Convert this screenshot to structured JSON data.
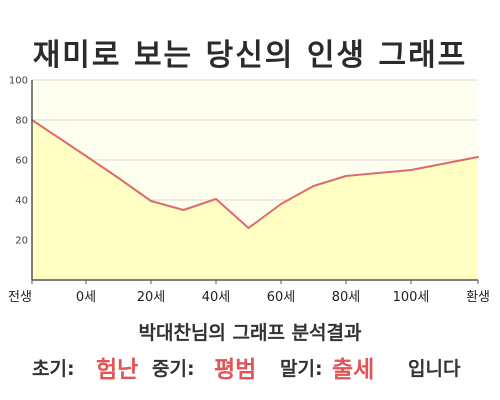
{
  "title": "재미로 보는 당신의 인생 그래프",
  "chart_data": {
    "type": "area",
    "x_labels": [
      "전생",
      "0세",
      "20세",
      "40세",
      "60세",
      "80세",
      "100세",
      "환생"
    ],
    "points": [
      {
        "x": "전생",
        "y": 80
      },
      {
        "x": "0세",
        "y": 62
      },
      {
        "x": "10세",
        "y": 51
      },
      {
        "x": "20세",
        "y": 39.5
      },
      {
        "x": "30세",
        "y": 35
      },
      {
        "x": "40세",
        "y": 40.5
      },
      {
        "x": "50세",
        "y": 26
      },
      {
        "x": "60세",
        "y": 38
      },
      {
        "x": "70세",
        "y": 47
      },
      {
        "x": "80세",
        "y": 52
      },
      {
        "x": "100세",
        "y": 55
      },
      {
        "x": "환생",
        "y": 61.5
      }
    ],
    "y_ticks": [
      20,
      40,
      60,
      80,
      100
    ],
    "ylim": [
      0,
      100
    ],
    "grid": true,
    "colors": {
      "line": "#dd6b6b",
      "fill": "#ffffc4",
      "plot_bg": "#fffff0",
      "grid": "#d9d9d9"
    }
  },
  "analysis": {
    "heading": "박대찬님의 그래프 분석결과",
    "early_label": "초기:",
    "early_value": "험난",
    "middle_label": "중기:",
    "middle_value": "평범",
    "late_label": "말기:",
    "late_value": "출세",
    "suffix": "입니다"
  }
}
